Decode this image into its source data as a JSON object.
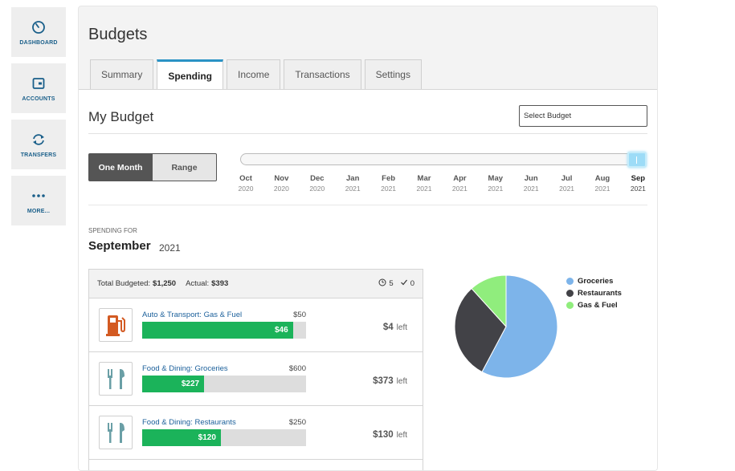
{
  "nav": [
    {
      "label": "DASHBOARD",
      "icon": "dashboard-icon"
    },
    {
      "label": "ACCOUNTS",
      "icon": "wallet-icon"
    },
    {
      "label": "TRANSFERS",
      "icon": "transfer-icon"
    },
    {
      "label": "MORE...",
      "icon": "more-icon"
    }
  ],
  "page_title": "Budgets",
  "tabs": [
    "Summary",
    "Spending",
    "Income",
    "Transactions",
    "Settings"
  ],
  "active_tab": "Spending",
  "budget_title": "My Budget",
  "select_budget_placeholder": "Select Budget",
  "range_toggle": {
    "one_month": "One Month",
    "range": "Range"
  },
  "months": [
    {
      "m": "Oct",
      "y": "2020"
    },
    {
      "m": "Nov",
      "y": "2020"
    },
    {
      "m": "Dec",
      "y": "2020"
    },
    {
      "m": "Jan",
      "y": "2021"
    },
    {
      "m": "Feb",
      "y": "2021"
    },
    {
      "m": "Mar",
      "y": "2021"
    },
    {
      "m": "Apr",
      "y": "2021"
    },
    {
      "m": "May",
      "y": "2021"
    },
    {
      "m": "Jun",
      "y": "2021"
    },
    {
      "m": "Jul",
      "y": "2021"
    },
    {
      "m": "Aug",
      "y": "2021"
    },
    {
      "m": "Sep",
      "y": "2021"
    }
  ],
  "spending_for_label": "SPENDING FOR",
  "spending_month": "September",
  "spending_year": "2021",
  "summary": {
    "total_label": "Total Budgeted:",
    "total_value": "$1,250",
    "actual_label": "Actual:",
    "actual_value": "$393",
    "pending_count": "5",
    "done_count": "0"
  },
  "rows": [
    {
      "name": "Auto & Transport: Gas & Fuel",
      "budget": "$50",
      "spent": "$46",
      "spent_fraction": 0.92,
      "left": "$4",
      "left_word": "left",
      "icon": "gas-pump-icon"
    },
    {
      "name": "Food & Dining: Groceries",
      "budget": "$600",
      "spent": "$227",
      "spent_fraction": 0.378,
      "left": "$373",
      "left_word": "left",
      "icon": "fork-knife-icon"
    },
    {
      "name": "Food & Dining: Restaurants",
      "budget": "$250",
      "spent": "$120",
      "spent_fraction": 0.48,
      "left": "$130",
      "left_word": "left",
      "icon": "fork-knife-icon"
    }
  ],
  "chart_data": {
    "type": "pie",
    "categories": [
      "Groceries",
      "Restaurants",
      "Gas & Fuel"
    ],
    "values": [
      227,
      120,
      46
    ],
    "colors": [
      "#7db4ea",
      "#424247",
      "#90ed7d"
    ]
  }
}
